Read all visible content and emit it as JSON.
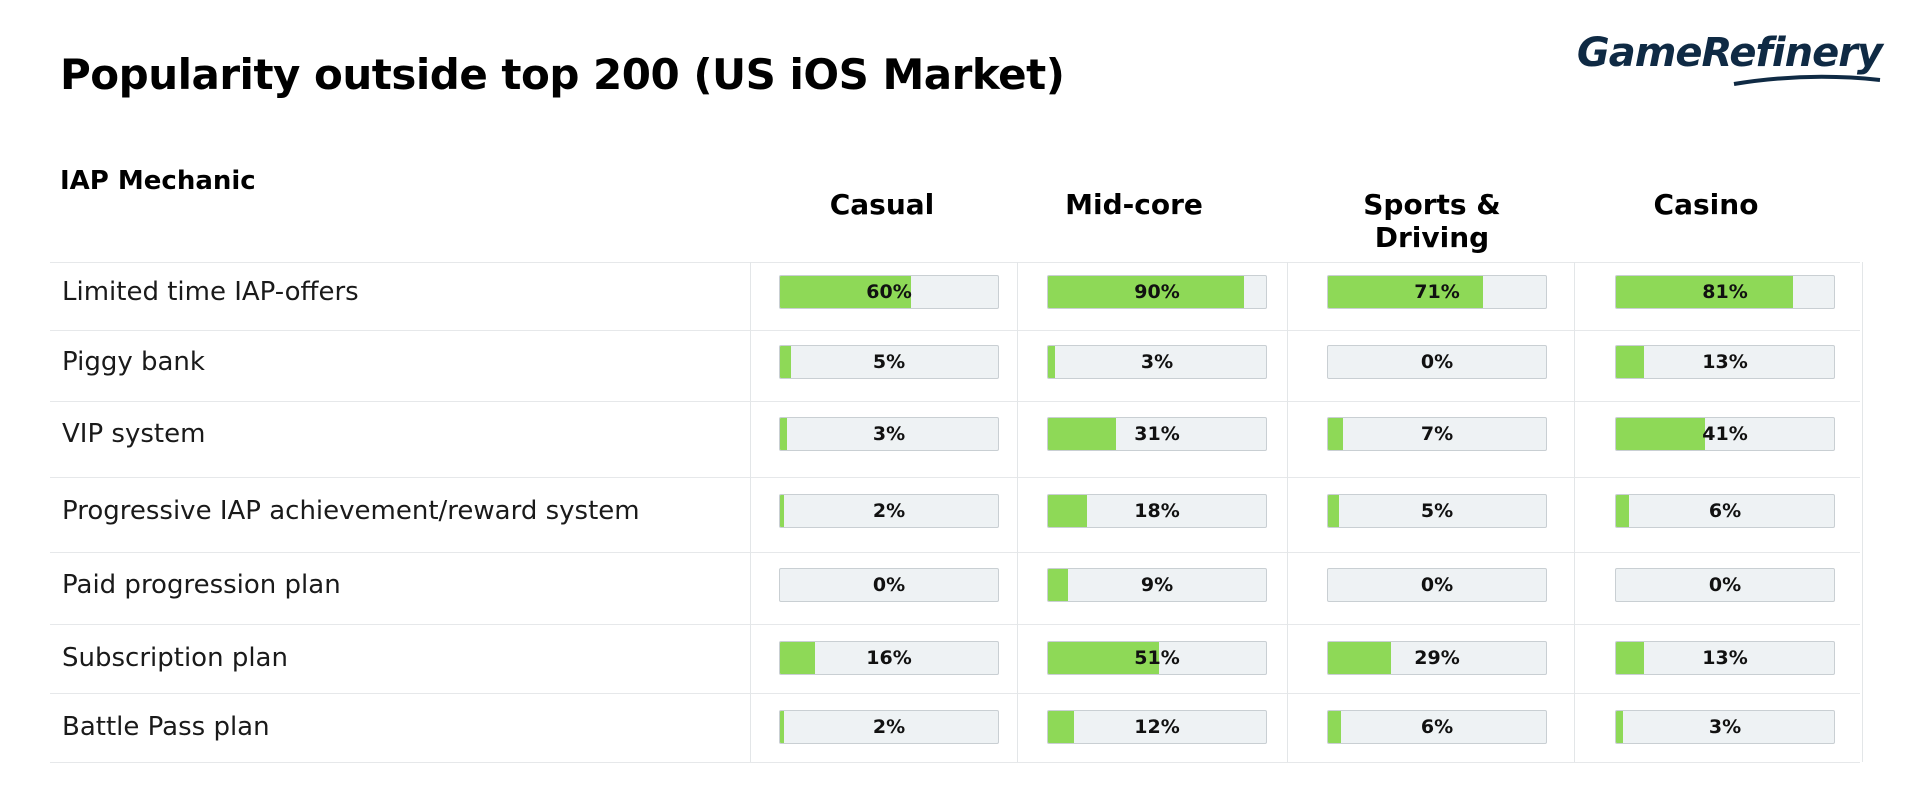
{
  "title": "Popularity outside top 200 (US iOS Market)",
  "logo": "GameRefinery",
  "chart_data": {
    "type": "bar",
    "title": "Popularity outside top 200 (US iOS Market)",
    "row_header": "IAP Mechanic",
    "categories": [
      "Limited time IAP-offers",
      "Piggy bank",
      "VIP system",
      "Progressive IAP achievement/reward system",
      "Paid progression plan",
      "Subscription plan",
      "Battle Pass plan"
    ],
    "series": [
      {
        "name": "Casual",
        "values": [
          60,
          5,
          3,
          2,
          0,
          16,
          2
        ]
      },
      {
        "name": "Mid-core",
        "values": [
          90,
          3,
          31,
          18,
          9,
          51,
          12
        ]
      },
      {
        "name": "Sports & Driving",
        "values": [
          71,
          0,
          7,
          5,
          0,
          29,
          6
        ]
      },
      {
        "name": "Casino",
        "values": [
          81,
          13,
          41,
          6,
          0,
          13,
          3
        ]
      }
    ],
    "unit": "%",
    "ylim": [
      0,
      100
    ],
    "bar_color": "#8ed957",
    "track_color": "#eef2f4"
  }
}
